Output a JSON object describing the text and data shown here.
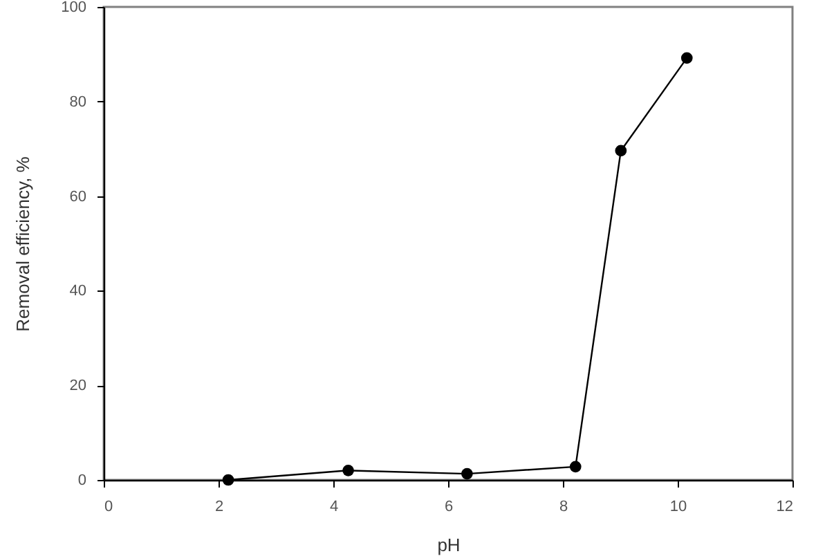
{
  "chart_data": {
    "type": "line",
    "xlabel": "pH",
    "ylabel": "Removal efficiency, %",
    "x": [
      2.17,
      4.26,
      6.33,
      8.22,
      9.01,
      10.16
    ],
    "series": [
      {
        "color": "#000000",
        "values": [
          0,
          2,
          1.3,
          2.8,
          69.6,
          89.2
        ]
      }
    ],
    "xlim": [
      0,
      12
    ],
    "xticks": [
      0,
      2,
      4,
      6,
      8,
      10,
      12
    ],
    "ylim": [
      0,
      100
    ],
    "yticks": [
      0,
      20,
      40,
      60,
      80,
      100
    ],
    "grid": false,
    "marker": "circle",
    "line_style": "solid"
  }
}
